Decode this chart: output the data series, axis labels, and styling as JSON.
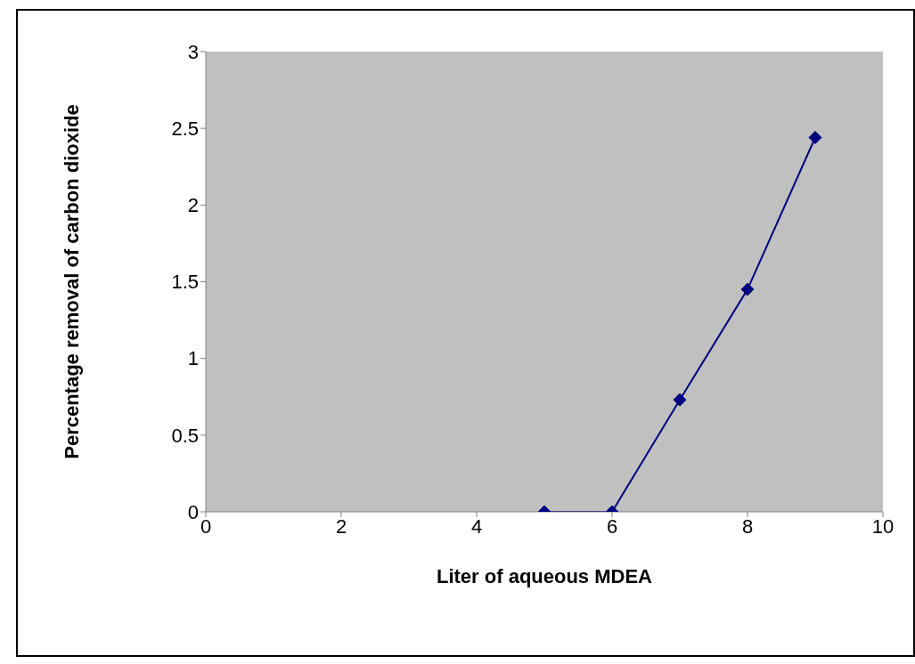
{
  "chart_data": {
    "type": "line",
    "xlabel": "Liter of aqueous MDEA",
    "ylabel": "Percentage removal of carbon dioxide",
    "x": [
      5,
      6,
      7,
      8,
      9
    ],
    "series": [
      {
        "color": "#000080",
        "values": [
          0,
          0,
          0.73,
          1.45,
          2.44
        ]
      }
    ],
    "xlim": [
      0,
      10
    ],
    "xticks": [
      0,
      2,
      4,
      6,
      8,
      10
    ],
    "ylim": [
      0,
      3
    ],
    "yticks": [
      0,
      0.5,
      1,
      1.5,
      2,
      2.5,
      3
    ],
    "grid": false,
    "legend": false,
    "marker": "diamond",
    "line_style": "solid"
  }
}
